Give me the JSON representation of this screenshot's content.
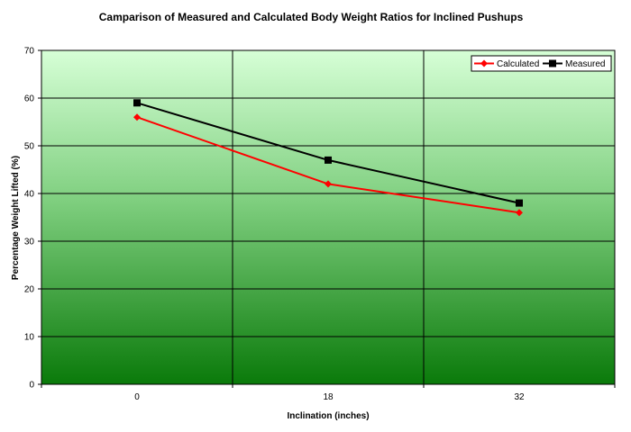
{
  "chart_data": {
    "type": "line",
    "title": "Camparison of Measured and Calculated Body Weight Ratios for Inclined Pushups",
    "xlabel": "Inclination (inches)",
    "ylabel": "Percentage Weight Lifted (%)",
    "categories": [
      "0",
      "18",
      "32"
    ],
    "ylim": [
      0,
      70
    ],
    "yticks": [
      0,
      10,
      20,
      30,
      40,
      50,
      60,
      70
    ],
    "grid": true,
    "legend_position": "top-right",
    "series": [
      {
        "name": "Calculated",
        "values": [
          56,
          42,
          36
        ],
        "color": "#ff0000",
        "marker": "diamond"
      },
      {
        "name": "Measured",
        "values": [
          59,
          47,
          38
        ],
        "color": "#000000",
        "marker": "square"
      }
    ],
    "colors": {
      "background_top": "#d6ffd6",
      "background_bottom": "#0a7a0a",
      "grid": "#000000",
      "axis": "#000000"
    }
  }
}
